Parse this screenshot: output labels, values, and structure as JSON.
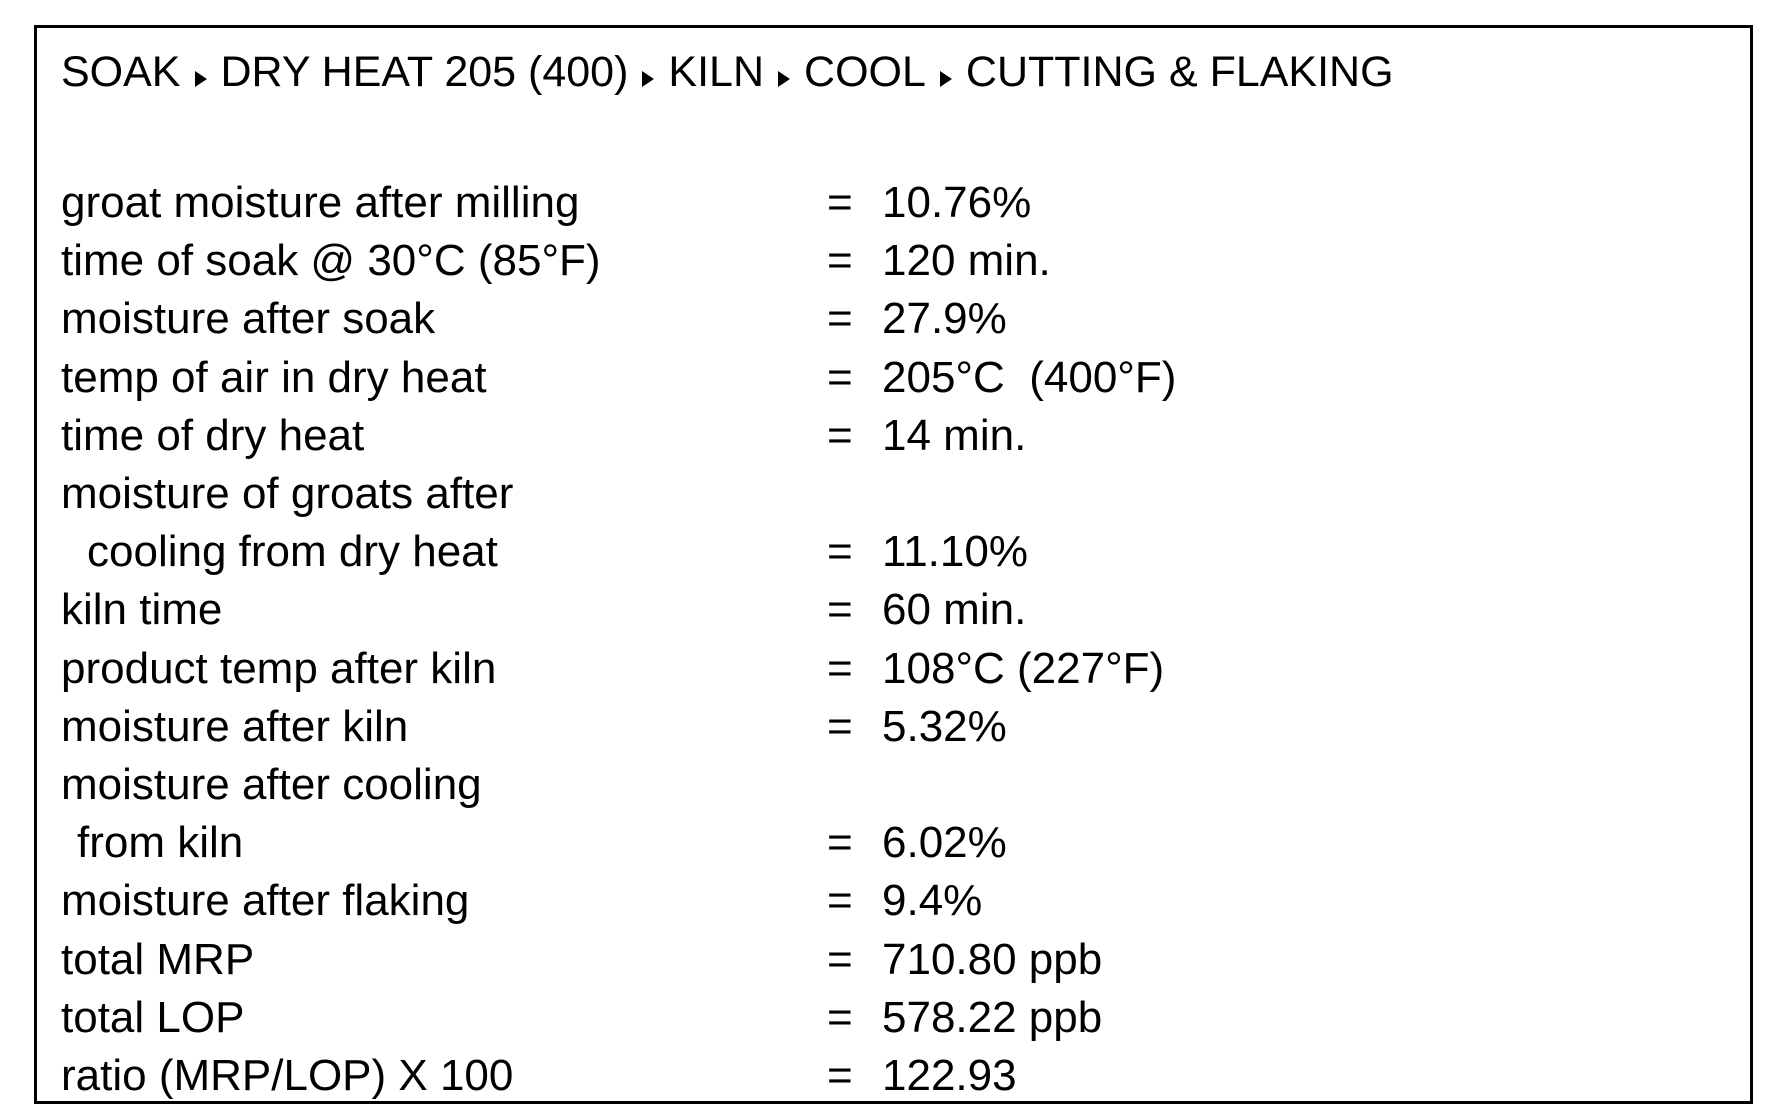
{
  "header": {
    "steps": [
      "SOAK",
      "DRY HEAT 205 (400)",
      "KILN",
      "COOL",
      "CUTTING & FLAKING"
    ]
  },
  "separator": "=",
  "rows": [
    {
      "label": [
        "groat moisture after milling"
      ],
      "value": "10.76%"
    },
    {
      "label": [
        "time of soak @ 30°C (85°F)"
      ],
      "value": "120 min."
    },
    {
      "label": [
        "moisture after soak"
      ],
      "value": "27.9%"
    },
    {
      "label": [
        "temp of air in dry heat"
      ],
      "value": "205°C  (400°F)"
    },
    {
      "label": [
        "time of dry heat"
      ],
      "value": "14 min."
    },
    {
      "label": [
        "moisture of groats after",
        "cooling from dry heat"
      ],
      "value": "11.10%"
    },
    {
      "label": [
        "kiln time"
      ],
      "value": "60 min."
    },
    {
      "label": [
        "product temp after kiln"
      ],
      "value": "108°C (227°F)"
    },
    {
      "label": [
        "moisture after kiln"
      ],
      "value": "5.32%"
    },
    {
      "label": [
        "moisture after cooling",
        "from kiln"
      ],
      "value": "6.02%"
    },
    {
      "label": [
        "moisture after flaking"
      ],
      "value": "9.4%"
    },
    {
      "label": [
        "total MRP"
      ],
      "value": "710.80 ppb"
    },
    {
      "label": [
        "total LOP"
      ],
      "value": "578.22 ppb"
    },
    {
      "label": [
        "ratio (MRP/LOP) X 100"
      ],
      "value": "122.93"
    }
  ]
}
